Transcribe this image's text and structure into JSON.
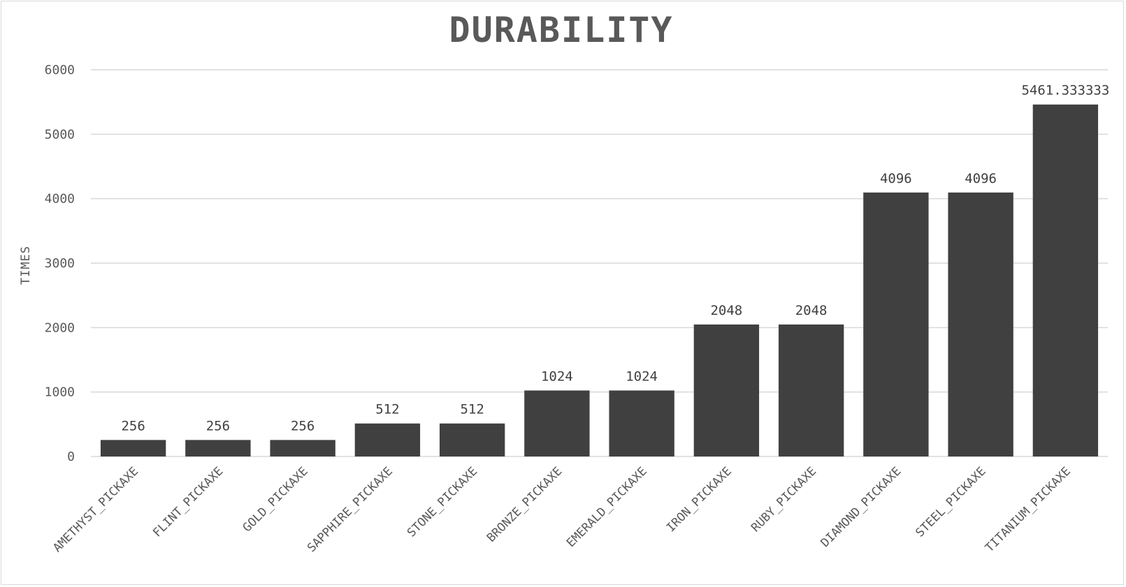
{
  "chart_data": {
    "type": "bar",
    "title": "DURABILITY",
    "xlabel": "",
    "ylabel": "TIMES",
    "ylim": [
      0,
      6000
    ],
    "yticks": [
      0,
      1000,
      2000,
      3000,
      4000,
      5000,
      6000
    ],
    "grid": true,
    "legend": "none",
    "bar_color": "#404040",
    "categories": [
      "AMETHYST_PICKAXE",
      "FLINT_PICKAXE",
      "GOLD_PICKAXE",
      "SAPPHIRE_PICKAXE",
      "STONE_PICKAXE",
      "BRONZE_PICKAXE",
      "EMERALD_PICKAXE",
      "IRON_PICKAXE",
      "RUBY_PICKAXE",
      "DIAMOND_PICKAXE",
      "STEEL_PICKAXE",
      "TITANIUM_PICKAXE"
    ],
    "values": [
      256,
      256,
      256,
      512,
      512,
      1024,
      1024,
      2048,
      2048,
      4096,
      4096,
      5461.333333
    ],
    "data_labels": [
      "256",
      "256",
      "256",
      "512",
      "512",
      "1024",
      "1024",
      "2048",
      "2048",
      "4096",
      "4096",
      "5461.333333"
    ]
  }
}
